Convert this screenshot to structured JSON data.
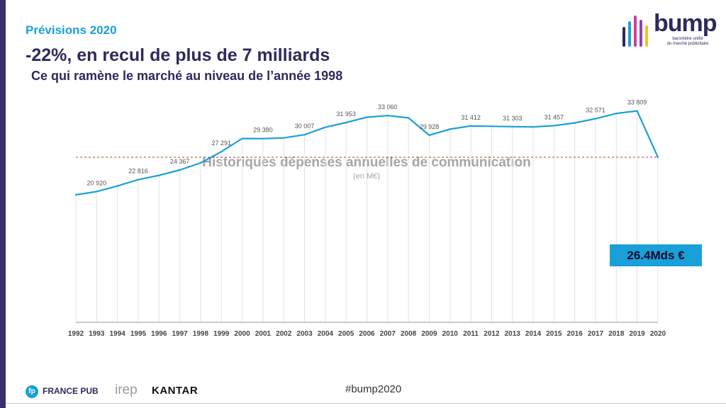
{
  "header": {
    "kicker": "Prévisions 2020",
    "headline": "-22%, en recul de plus de 7 milliards",
    "subline": "Ce qui ramène le marché au niveau de l’année 1998"
  },
  "logo": {
    "word": "bump",
    "tagline_1": "baromètre unifié",
    "tagline_2": "du marché publicitaire",
    "bar_colors": [
      "#2e2a5c",
      "#1aa0d8",
      "#d63aa0",
      "#8e44ad",
      "#f0c419"
    ]
  },
  "chart_data": {
    "type": "line",
    "title": "Historiques dépenses annuelles de communication",
    "unit": "(en M€)",
    "categories": [
      "1992",
      "1993",
      "1994",
      "1995",
      "1996",
      "1997",
      "1998",
      "1999",
      "2000",
      "2001",
      "2002",
      "2003",
      "2004",
      "2005",
      "2006",
      "2007",
      "2008",
      "2009",
      "2010",
      "2011",
      "2012",
      "2013",
      "2014",
      "2015",
      "2016",
      "2017",
      "2018",
      "2019",
      "2020"
    ],
    "series": [
      {
        "values": [
          20400,
          20920,
          21800,
          22816,
          23500,
          24367,
          25500,
          27291,
          29400,
          29380,
          29500,
          30007,
          31200,
          31953,
          32800,
          33060,
          32700,
          29928,
          30900,
          31412,
          31350,
          31303,
          31250,
          31457,
          31900,
          32571,
          33400,
          33809,
          26400
        ],
        "color": "#1aa0d8"
      }
    ],
    "data_labels": [
      {
        "index": 1,
        "text": "20 920"
      },
      {
        "index": 3,
        "text": "22 816"
      },
      {
        "index": 5,
        "text": "24 367"
      },
      {
        "index": 7,
        "text": "27 291"
      },
      {
        "index": 9,
        "text": "29 380"
      },
      {
        "index": 11,
        "text": "30 007"
      },
      {
        "index": 13,
        "text": "31 953"
      },
      {
        "index": 15,
        "text": "33 060"
      },
      {
        "index": 17,
        "text": "29 928"
      },
      {
        "index": 19,
        "text": "31 412"
      },
      {
        "index": 21,
        "text": "31 303"
      },
      {
        "index": 23,
        "text": "31 457"
      },
      {
        "index": 25,
        "text": "32 571"
      },
      {
        "index": 27,
        "text": "33 809"
      }
    ],
    "reference_line": {
      "value": 26400,
      "color": "#c0392b"
    },
    "callout": "26.4Mds €",
    "ylim": [
      0,
      40000
    ],
    "grid": "vertical",
    "legend": "none"
  },
  "footer": {
    "fp_mark": "fp",
    "francepub": "FRANCE PUB",
    "irep": "irep",
    "kantar": "KANTAR",
    "hashtag": "#bump2020"
  }
}
